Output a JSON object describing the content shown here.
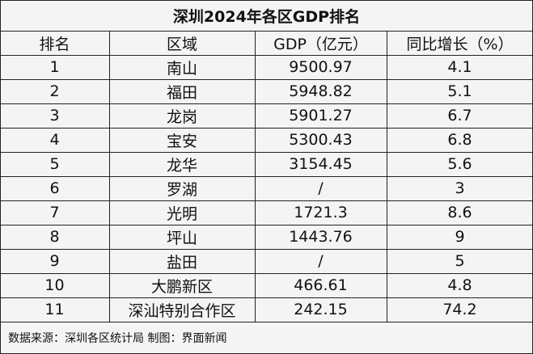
{
  "title": "深圳2024年各区GDP排名",
  "table": {
    "header": [
      "排名",
      "区域",
      "GDP（亿元）",
      "同比增长（%）"
    ],
    "rows": [
      [
        "1",
        "南山",
        "9500.97",
        "4.1"
      ],
      [
        "2",
        "福田",
        "5948.82",
        "5.1"
      ],
      [
        "3",
        "龙岗",
        "5901.27",
        "6.7"
      ],
      [
        "4",
        "宝安",
        "5300.43",
        "6.8"
      ],
      [
        "5",
        "龙华",
        "3154.45",
        "5.6"
      ],
      [
        "6",
        "罗湖",
        "/",
        "3"
      ],
      [
        "7",
        "光明",
        "1721.3",
        "8.6"
      ],
      [
        "8",
        "坪山",
        "1443.76",
        "9"
      ],
      [
        "9",
        "盐田",
        "/",
        "5"
      ],
      [
        "10",
        "大鹏新区",
        "466.61",
        "4.8"
      ],
      [
        "11",
        "深汕特别合作区",
        "242.15",
        "74.2"
      ]
    ]
  },
  "footer": "数据来源：深圳各区统计局  制图：界面新闻"
}
